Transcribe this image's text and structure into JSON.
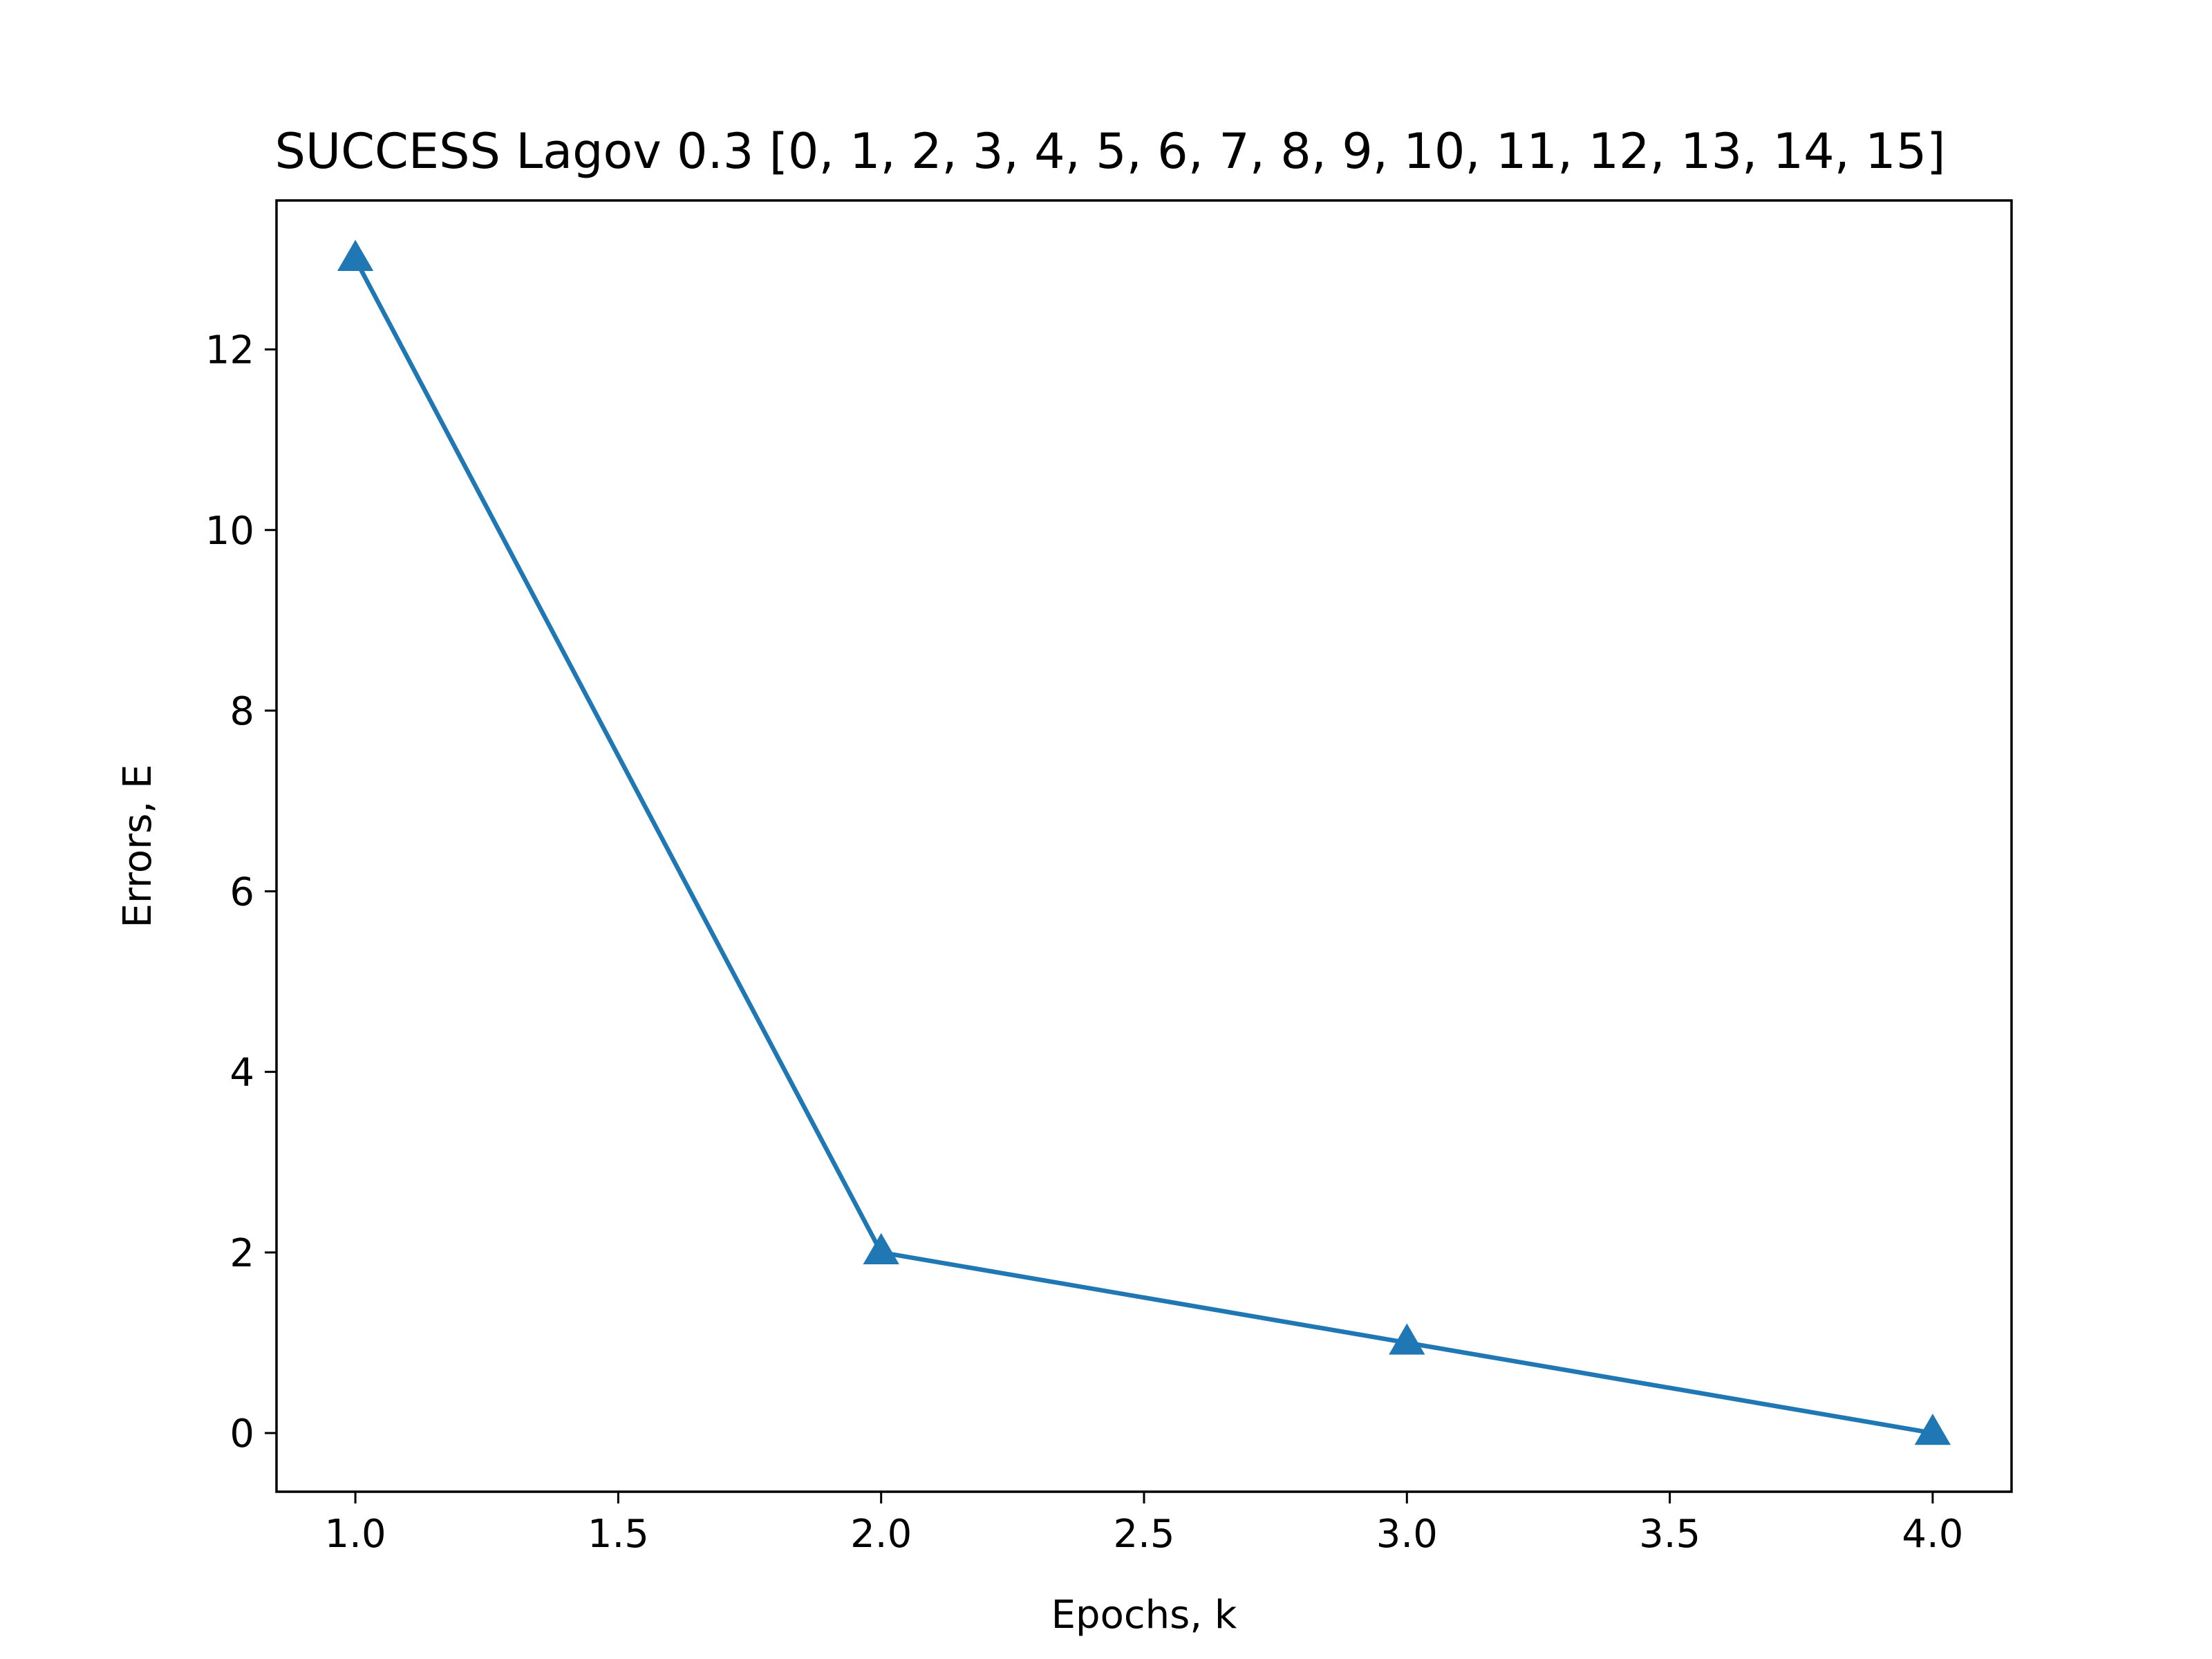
{
  "chart_data": {
    "type": "line",
    "title": "SUCCESS Lagov 0.3 [0, 1, 2, 3, 4, 5, 6, 7, 8, 9, 10, 11, 12, 13, 14, 15]",
    "xlabel": "Epochs, k",
    "ylabel": "Errors, E",
    "xlim": [
      0.85,
      4.15
    ],
    "ylim": [
      -0.65,
      13.65
    ],
    "xticks": [
      1.0,
      1.5,
      2.0,
      2.5,
      3.0,
      3.5,
      4.0
    ],
    "xtick_labels": [
      "1.0",
      "1.5",
      "2.0",
      "2.5",
      "3.0",
      "3.5",
      "4.0"
    ],
    "yticks": [
      0,
      2,
      4,
      6,
      8,
      10,
      12
    ],
    "ytick_labels": [
      "0",
      "2",
      "4",
      "6",
      "8",
      "10",
      "12"
    ],
    "grid": false,
    "legend": "none",
    "series": [
      {
        "x": [
          1,
          2,
          3,
          4
        ],
        "y": [
          13,
          2,
          1,
          0
        ],
        "marker": "triangle-up",
        "color": "#1f77b4"
      }
    ]
  }
}
